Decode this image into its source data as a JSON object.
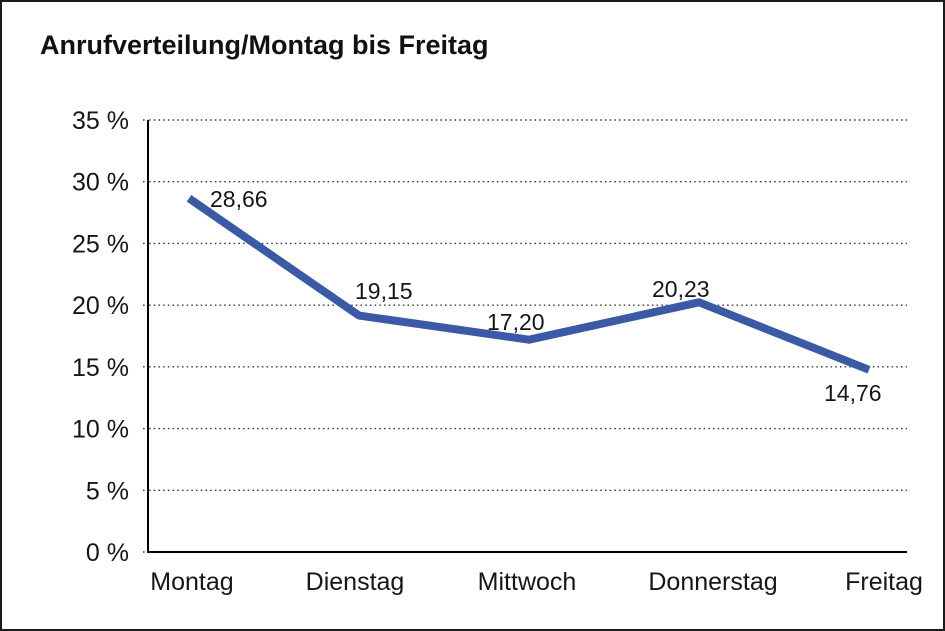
{
  "chart_data": {
    "type": "line",
    "title": "Anrufverteilung/Montag bis Freitag",
    "categories": [
      "Montag",
      "Dienstag",
      "Mittwoch",
      "Donnerstag",
      "Freitag"
    ],
    "values": [
      28.66,
      19.15,
      17.2,
      20.23,
      14.76
    ],
    "point_labels": [
      "28,66",
      "19,15",
      "17,20",
      "20,23",
      "14,76"
    ],
    "series_name": "Anrufverteilung",
    "xlabel": "",
    "ylabel": "",
    "ylim": [
      0,
      35
    ],
    "ytick_step": 5,
    "ytick_labels": [
      "0 %",
      "5 %",
      "10 %",
      "15 %",
      "20 %",
      "25 %",
      "30 %",
      "35 %"
    ],
    "grid": "horizontal-dotted",
    "legend_position": "none",
    "line_color": "#3A5AA5",
    "axis_color": "#000000",
    "grid_color": "#3c3c3c",
    "text_color": "#161616",
    "background_color": "#ffffff",
    "frame_color": "#1b1b1b"
  }
}
